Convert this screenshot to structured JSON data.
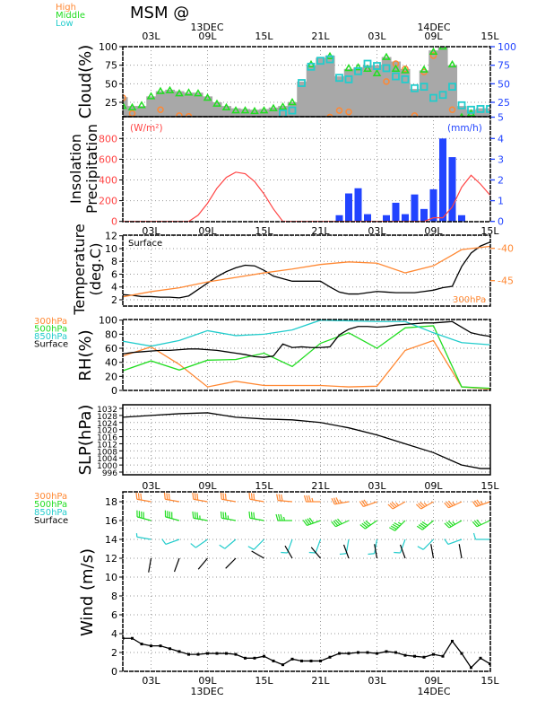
{
  "title": "MSM  @",
  "dates": {
    "day1": "13DEC",
    "day2": "14DEC"
  },
  "time_ticks": [
    "03L",
    "09L",
    "15L",
    "21L",
    "03L",
    "09L",
    "15L"
  ],
  "colors": {
    "high": "#ff8833",
    "middle": "#22dd22",
    "low": "#22cccc",
    "total": "#a8a8a8",
    "insolation": "#ff4444",
    "precip": "#2244ff",
    "surface": "#000000"
  },
  "chart_data": [
    {
      "id": "cloud",
      "type": "area",
      "ylabel": [
        "Cloud(%)"
      ],
      "ylim": [
        5,
        100
      ],
      "yticks": [
        "100",
        "75",
        "50",
        "25"
      ],
      "yticks_right": [
        "100",
        "75",
        "50",
        "25",
        "5"
      ],
      "legend": [
        "High",
        "Middle",
        "Low"
      ],
      "x_hours": "0..39 hourly from 00L 13DEC",
      "series": [
        {
          "name": "Total",
          "values": [
            32,
            20,
            20,
            33,
            40,
            42,
            40,
            38,
            38,
            33,
            25,
            20,
            17,
            16,
            15,
            16,
            18,
            20,
            25,
            53,
            75,
            85,
            88,
            60,
            70,
            72,
            75,
            75,
            86,
            80,
            70,
            43,
            68,
            95,
            100,
            75,
            20,
            15,
            17,
            17
          ]
        },
        {
          "name": "High",
          "values": [
            31,
            10,
            null,
            null,
            15,
            null,
            7,
            6,
            null,
            null,
            null,
            null,
            null,
            null,
            null,
            null,
            null,
            null,
            null,
            null,
            null,
            null,
            5,
            14,
            12,
            null,
            null,
            null,
            53,
            77,
            70,
            7,
            66,
            88,
            null,
            15,
            null,
            null,
            null,
            null
          ]
        },
        {
          "name": "Middle",
          "values": [
            20,
            18,
            21,
            33,
            40,
            41,
            37,
            38,
            37,
            31,
            23,
            18,
            14,
            14,
            13,
            14,
            17,
            19,
            25,
            null,
            76,
            null,
            87,
            null,
            71,
            72,
            70,
            64,
            86,
            70,
            68,
            null,
            69,
            93,
            100,
            76,
            5,
            10,
            null,
            null
          ]
        },
        {
          "name": "Low",
          "values": [
            null,
            null,
            null,
            null,
            null,
            null,
            null,
            null,
            null,
            null,
            null,
            null,
            null,
            null,
            null,
            null,
            null,
            10,
            14,
            51,
            73,
            81,
            83,
            58,
            56,
            67,
            77,
            74,
            71,
            60,
            56,
            44,
            46,
            31,
            35,
            46,
            21,
            15,
            16,
            16
          ]
        }
      ]
    },
    {
      "id": "insolation",
      "type": "bar+line",
      "ylabel": [
        "Insolation",
        "Precipitation"
      ],
      "unit_left": "(W/m²)",
      "unit_right": "(mm/h)",
      "ylim": [
        0,
        1000
      ],
      "ylim_right": [
        0,
        5
      ],
      "yticks": [
        "800",
        "600",
        "400",
        "200",
        "0"
      ],
      "yticks_right": [
        "4",
        "3",
        "2",
        "1",
        "0"
      ],
      "series": [
        {
          "name": "Insolation",
          "values": [
            0,
            0,
            0,
            0,
            0,
            0,
            0,
            0,
            60,
            175,
            320,
            425,
            475,
            460,
            385,
            265,
            120,
            0,
            0,
            0,
            0,
            0,
            0,
            0,
            0,
            0,
            0,
            0,
            0,
            0,
            0,
            0,
            0,
            35,
            35,
            140,
            330,
            445,
            360,
            255
          ]
        },
        {
          "name": "Precipitation",
          "values": [
            0,
            0,
            0,
            0,
            0,
            0,
            0,
            0,
            0,
            0,
            0,
            0,
            0,
            0,
            0,
            0,
            0,
            0,
            0,
            0,
            0,
            0,
            0,
            0.3,
            1.35,
            1.6,
            0.35,
            0,
            0.3,
            0.9,
            0.35,
            1.3,
            0.6,
            1.55,
            4.0,
            3.1,
            0.3,
            0,
            0,
            0
          ]
        }
      ]
    },
    {
      "id": "temperature",
      "type": "line",
      "ylabel": [
        "Temperature",
        "(deg.C)"
      ],
      "ylim": [
        2,
        12
      ],
      "ylim_right": [
        -48,
        -38
      ],
      "yticks": [
        "12",
        "10",
        "8",
        "6",
        "4",
        "2"
      ],
      "yticks_right": [
        "-40",
        "-45"
      ],
      "legend": [
        "Surface",
        "300hPa"
      ],
      "series": [
        {
          "name": "Surface",
          "hours": [
            0,
            1,
            2,
            3,
            4,
            5,
            6,
            7,
            8,
            9,
            10,
            11,
            12,
            13,
            14,
            15,
            16,
            17,
            18,
            19,
            20,
            21,
            22,
            23,
            24,
            25,
            26,
            27,
            28,
            29,
            30,
            31,
            32,
            33,
            34,
            35,
            36,
            37,
            38,
            39
          ],
          "values": [
            2.8,
            2.7,
            2.5,
            2.5,
            2.4,
            2.4,
            2.3,
            2.6,
            3.6,
            4.6,
            5.6,
            6.4,
            7.0,
            7.4,
            7.3,
            6.6,
            5.7,
            5.3,
            4.9,
            4.9,
            4.9,
            4.9,
            4.0,
            3.2,
            2.9,
            2.9,
            3.1,
            3.3,
            3.2,
            3.1,
            3.1,
            3.1,
            3.3,
            3.5,
            3.9,
            4.1,
            7.2,
            9.3,
            10.4,
            11.0
          ]
        },
        {
          "name": "300hPa",
          "axis": "right",
          "hours": [
            0,
            3,
            6,
            9,
            12,
            15,
            18,
            21,
            24,
            27,
            30,
            33,
            36,
            39
          ],
          "values": [
            -47.5,
            -46.7,
            -46.1,
            -45.2,
            -44.5,
            -43.8,
            -43.2,
            -42.5,
            -42.1,
            -42.3,
            -43.8,
            -42.7,
            -40.2,
            -39.7
          ]
        }
      ]
    },
    {
      "id": "rh",
      "type": "line",
      "ylabel": [
        "RH(%)"
      ],
      "ylim": [
        0,
        100
      ],
      "yticks": [
        "100",
        "80",
        "60",
        "40",
        "20",
        "0"
      ],
      "legend": [
        "300hPa",
        "500hPa",
        "850hPa",
        "Surface"
      ],
      "series": [
        {
          "name": "300hPa",
          "hours": [
            0,
            3,
            6,
            9,
            12,
            15,
            18,
            21,
            24,
            27,
            30,
            33,
            36,
            39
          ],
          "values": [
            49,
            62,
            37,
            5,
            13,
            7,
            7,
            7,
            5,
            6,
            57,
            71,
            5,
            2
          ]
        },
        {
          "name": "500hPa",
          "hours": [
            0,
            3,
            6,
            9,
            12,
            15,
            18,
            21,
            24,
            27,
            30,
            33,
            36,
            39
          ],
          "values": [
            28,
            42,
            29,
            43,
            44,
            53,
            34,
            67,
            82,
            60,
            89,
            92,
            5,
            3
          ]
        },
        {
          "name": "850hPa",
          "hours": [
            0,
            3,
            6,
            9,
            12,
            15,
            18,
            21,
            24,
            27,
            30,
            33,
            36,
            39
          ],
          "values": [
            70,
            63,
            71,
            85,
            78,
            80,
            86,
            100,
            99,
            98,
            98,
            82,
            68,
            65
          ]
        },
        {
          "name": "Surface",
          "hours": [
            0,
            1,
            2,
            3,
            4,
            5,
            6,
            7,
            8,
            9,
            10,
            11,
            12,
            13,
            14,
            15,
            16,
            17,
            18,
            19,
            20,
            21,
            22,
            23,
            24,
            25,
            26,
            27,
            28,
            29,
            30,
            31,
            32,
            33,
            34,
            35,
            36,
            37,
            38,
            39
          ],
          "values": [
            52,
            54,
            55,
            56,
            57,
            57,
            58,
            59,
            59,
            58,
            57,
            55,
            53,
            51,
            48,
            47,
            49,
            66,
            61,
            62,
            61,
            61,
            62,
            79,
            87,
            91,
            91,
            90,
            91,
            93,
            94,
            95,
            96,
            96,
            97,
            98,
            90,
            82,
            79,
            77
          ]
        }
      ]
    },
    {
      "id": "slp",
      "type": "line",
      "ylabel": [
        "SLP(hPa)"
      ],
      "ylim": [
        996,
        1032
      ],
      "yticks": [
        "1032",
        "1028",
        "1024",
        "1020",
        "1016",
        "1012",
        "1008",
        "1004",
        "1000",
        "996"
      ],
      "series": [
        {
          "name": "SLP",
          "hours": [
            0,
            3,
            6,
            9,
            12,
            15,
            18,
            21,
            24,
            27,
            30,
            33,
            36,
            38,
            39
          ],
          "values": [
            1027,
            1028,
            1029,
            1029.5,
            1027,
            1026,
            1025.5,
            1024,
            1021,
            1017,
            1012,
            1007,
            1000,
            998,
            998
          ]
        }
      ]
    },
    {
      "id": "wind",
      "type": "line+barbs",
      "ylabel": [
        "Wind  (m/s)"
      ],
      "ylim": [
        0,
        19
      ],
      "yticks": [
        "18",
        "16",
        "14",
        "12",
        "10",
        "8",
        "6",
        "4",
        "2",
        "0"
      ],
      "legend": [
        "300hPa",
        "500hPa",
        "850hPa",
        "Surface"
      ],
      "series": [
        {
          "name": "Surface speed",
          "values": [
            3.5,
            3.5,
            2.9,
            2.7,
            2.7,
            2.4,
            2.1,
            1.8,
            1.8,
            1.9,
            1.9,
            1.9,
            1.8,
            1.4,
            1.4,
            1.6,
            1.1,
            0.7,
            1.3,
            1.1,
            1.1,
            1.1,
            1.5,
            1.9,
            1.9,
            2.0,
            2.0,
            1.9,
            2.1,
            2.0,
            1.7,
            1.6,
            1.5,
            1.8,
            1.6,
            3.2,
            1.9,
            0.4,
            1.4,
            0.8
          ]
        }
      ],
      "barbs": [
        {
          "name": "300hPa",
          "level": 18,
          "hours": [
            3,
            6,
            9,
            12,
            15,
            18,
            21,
            24,
            27,
            30,
            33,
            36,
            39
          ],
          "dir": [
            280,
            280,
            280,
            280,
            280,
            275,
            270,
            260,
            250,
            240,
            240,
            245,
            250
          ],
          "speed": [
            30,
            30,
            30,
            30,
            30,
            30,
            35,
            35,
            30,
            35,
            35,
            35,
            35
          ]
        },
        {
          "name": "500hPa",
          "level": 16,
          "hours": [
            3,
            6,
            9,
            12,
            15,
            18,
            21,
            24,
            27,
            30,
            33,
            36,
            39
          ],
          "dir": [
            285,
            285,
            280,
            280,
            280,
            270,
            250,
            245,
            235,
            225,
            230,
            240,
            245
          ],
          "speed": [
            40,
            40,
            35,
            35,
            30,
            35,
            40,
            40,
            40,
            45,
            40,
            35,
            30
          ]
        },
        {
          "name": "850hPa",
          "level": 14,
          "hours": [
            3,
            6,
            9,
            12,
            15,
            18,
            21,
            24,
            27,
            30,
            33,
            36,
            39
          ],
          "dir": [
            280,
            250,
            235,
            230,
            225,
            200,
            200,
            190,
            190,
            200,
            225,
            250,
            270
          ],
          "speed": [
            8,
            10,
            10,
            10,
            10,
            10,
            10,
            10,
            10,
            10,
            10,
            10,
            10
          ]
        },
        {
          "name": "Surface",
          "level": 12,
          "hours": [
            3,
            6,
            9,
            12,
            15,
            18,
            21,
            24,
            27,
            30,
            33,
            36
          ],
          "dir": [
            190,
            200,
            220,
            225,
            300,
            330,
            320,
            340,
            350,
            340,
            350,
            350
          ],
          "speed": [
            2,
            2,
            2,
            2,
            2,
            2,
            2,
            2,
            2,
            2,
            2,
            2
          ]
        }
      ]
    }
  ]
}
